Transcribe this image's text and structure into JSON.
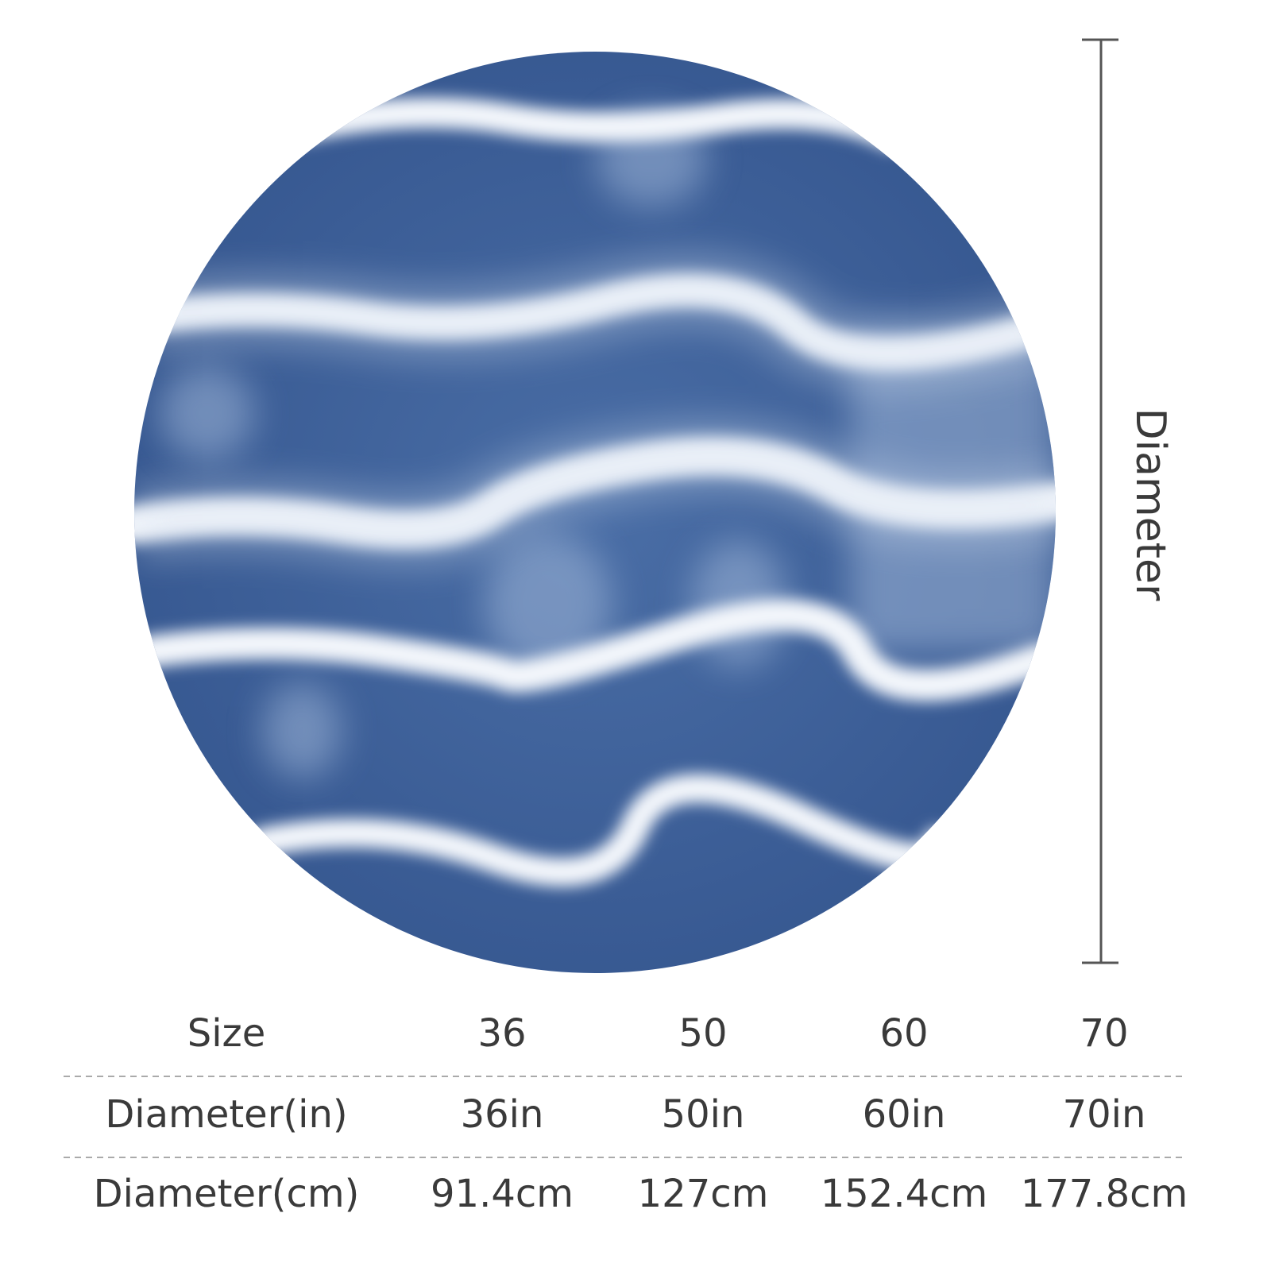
{
  "dimension_label": "Diameter",
  "table": {
    "header": [
      "Size",
      "36",
      "50",
      "60",
      "70"
    ],
    "rows": [
      [
        "Diameter(in)",
        "36in",
        "50in",
        "60in",
        "70in"
      ],
      [
        "Diameter(cm)",
        "91.4cm",
        "127cm",
        "152.4cm",
        "177.8cm"
      ]
    ]
  }
}
